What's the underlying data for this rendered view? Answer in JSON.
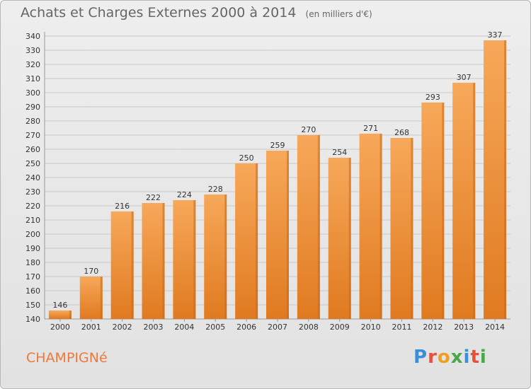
{
  "header": {
    "title": "Achats et Charges Externes 2000 à 2014",
    "unit": "(en milliers d'€)"
  },
  "footer": {
    "commune": "CHAMPIGNé",
    "brand": "Proxiti",
    "brand_colors": [
      "#3b8fd8",
      "#e8503a",
      "#f0a020",
      "#4aa84a",
      "#3b8fd8",
      "#e8503a",
      "#4aa84a"
    ]
  },
  "colors": {
    "bar_light": "#f7a85a",
    "bar_dark": "#e07a20",
    "bar_side": "#c86a18",
    "grid": "#c8c8c8",
    "text": "#333333"
  },
  "chart_data": {
    "type": "bar",
    "title": "Achats et Charges Externes 2000 à 2014",
    "subtitle": "(en milliers d'€)",
    "categories": [
      "2000",
      "2001",
      "2002",
      "2003",
      "2004",
      "2005",
      "2006",
      "2007",
      "2008",
      "2009",
      "2010",
      "2011",
      "2012",
      "2013",
      "2014"
    ],
    "values": [
      146,
      170,
      216,
      222,
      224,
      228,
      250,
      259,
      270,
      254,
      271,
      268,
      293,
      307,
      337
    ],
    "ylim": [
      140,
      340
    ],
    "yticks": [
      140,
      150,
      160,
      170,
      180,
      190,
      200,
      210,
      220,
      230,
      240,
      250,
      260,
      270,
      280,
      290,
      300,
      310,
      320,
      330,
      340
    ],
    "xlabel": "",
    "ylabel": "",
    "grid": true,
    "data_labels": true
  }
}
